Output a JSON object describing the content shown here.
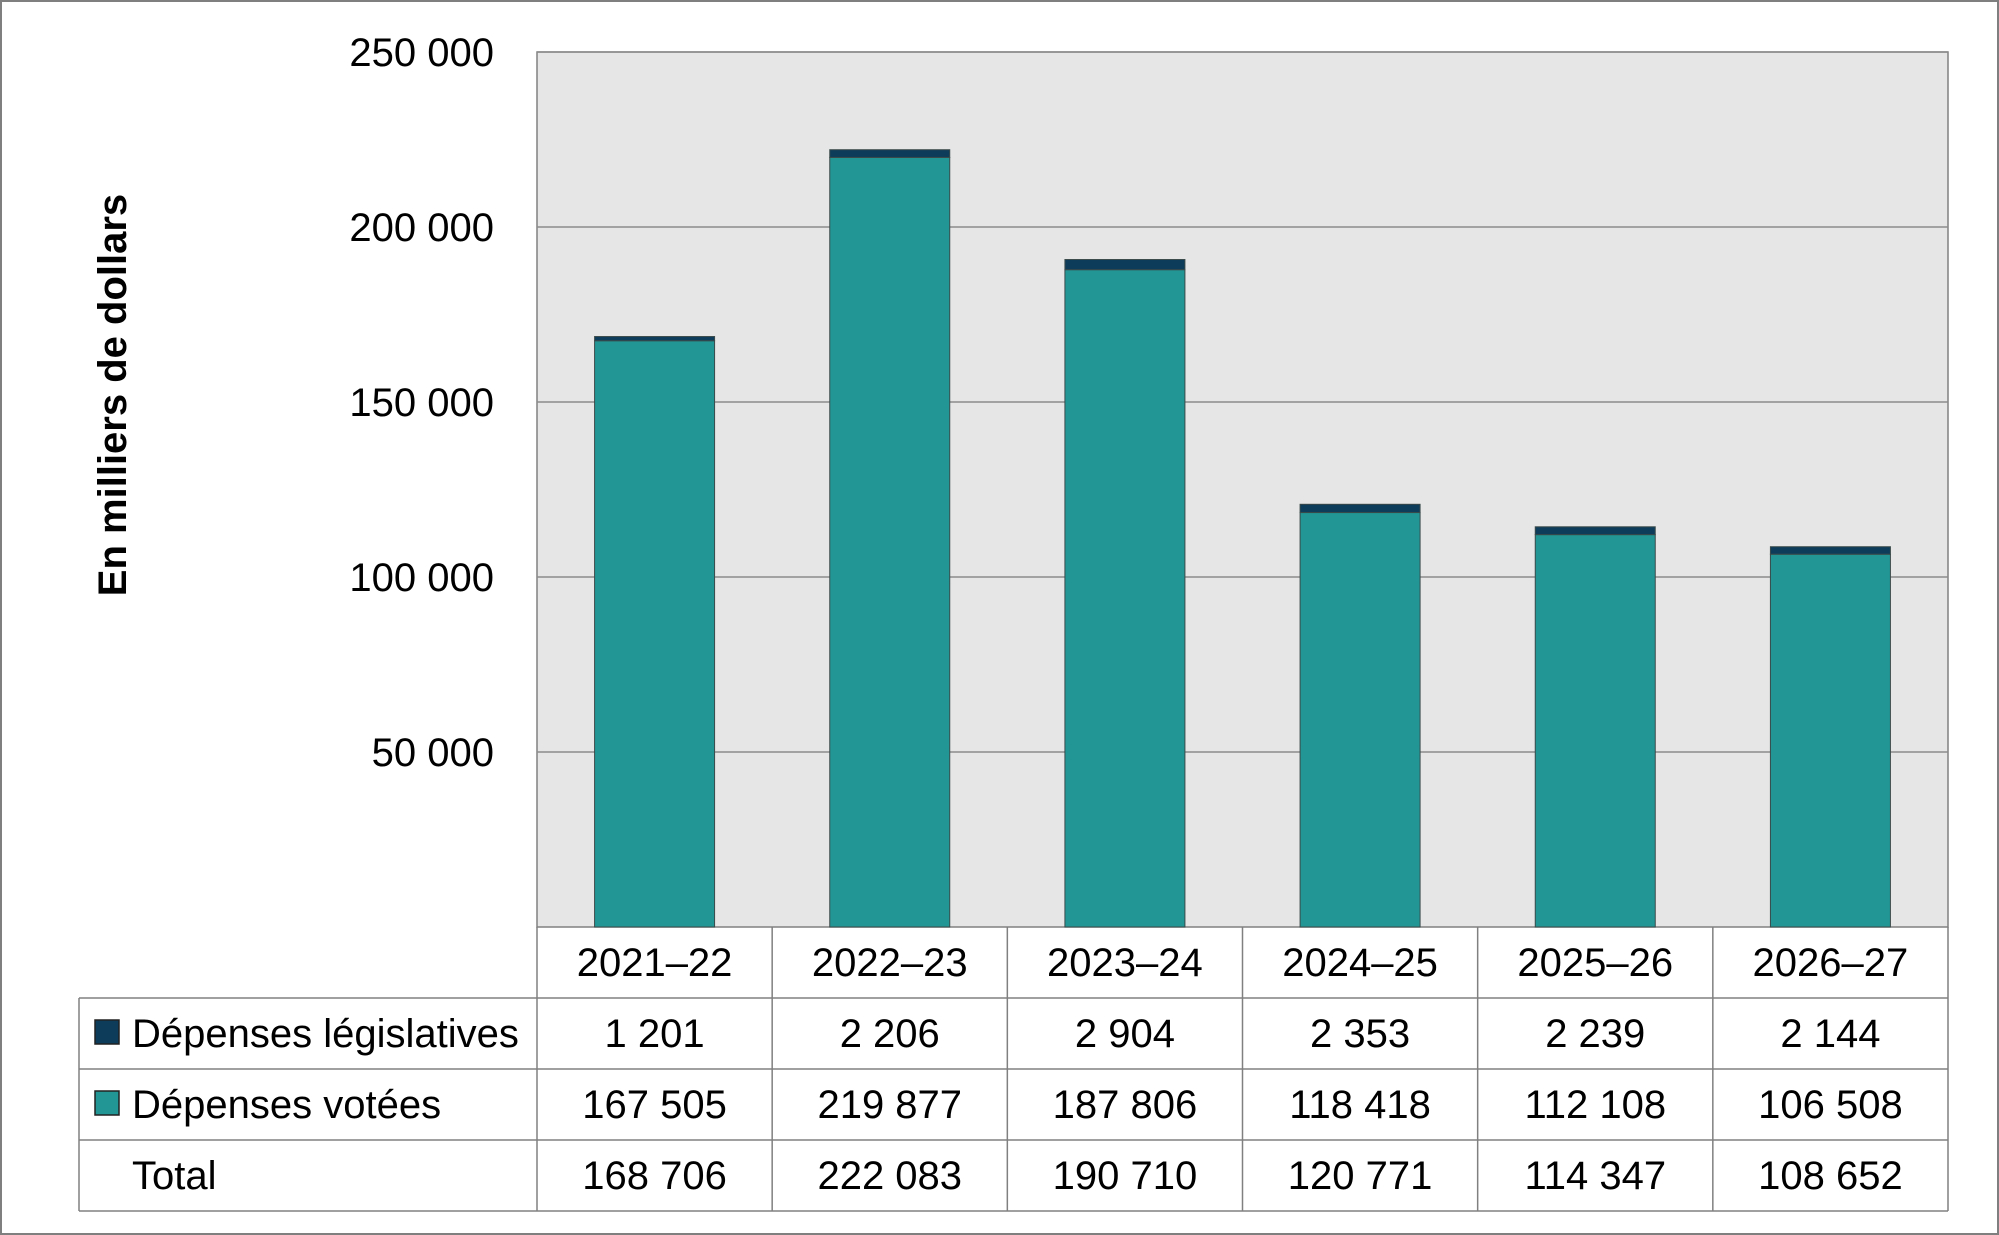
{
  "chart_data": {
    "type": "bar",
    "stacked": true,
    "title": "",
    "xlabel": "",
    "ylabel": "En milliers de dollars",
    "ylim": [
      0,
      250000
    ],
    "yticks": [
      50000,
      100000,
      150000,
      200000,
      250000
    ],
    "ytick_labels": [
      "50 000",
      "100 000",
      "150 000",
      "200 000",
      "250 000"
    ],
    "grid": true,
    "categories": [
      "2021–22",
      "2022–23",
      "2023–24",
      "2024–25",
      "2025–26",
      "2026–27"
    ],
    "series": [
      {
        "name": "Dépenses votées",
        "color": "#219695",
        "values": [
          167505,
          219877,
          187806,
          118418,
          112108,
          106508
        ],
        "labels": [
          "167 505",
          "219 877",
          "187 806",
          "118 418",
          "112 108",
          "106 508"
        ]
      },
      {
        "name": "Dépenses législatives",
        "color": "#0d3c5a",
        "values": [
          1201,
          2206,
          2904,
          2353,
          2239,
          2144
        ],
        "labels": [
          "1 201",
          "2 206",
          "2 904",
          "2 353",
          "2 239",
          "2 144"
        ]
      }
    ],
    "table_rows": [
      {
        "label": "Dépenses législatives",
        "series": 1
      },
      {
        "label": "Dépenses votées",
        "series": 0
      },
      {
        "label": "Total",
        "values": [
          "168 706",
          "222 083",
          "190 710",
          "120 771",
          "114 347",
          "108 652"
        ]
      }
    ],
    "legend": "data-table"
  }
}
